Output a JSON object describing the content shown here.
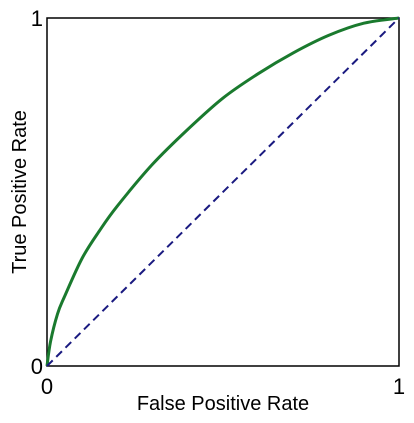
{
  "chart_data": {
    "type": "line",
    "title": "",
    "xlabel": "False Positive Rate",
    "ylabel": "True Positive Rate",
    "xlim": [
      0,
      1
    ],
    "ylim": [
      0,
      1
    ],
    "x_ticks": [
      "0",
      "1"
    ],
    "y_ticks": [
      "0",
      "1"
    ],
    "grid": false,
    "legend": "none",
    "series": [
      {
        "color": "#1a7a2e",
        "style": "solid",
        "x": [
          0,
          0.01,
          0.03,
          0.05,
          0.1,
          0.15,
          0.2,
          0.3,
          0.4,
          0.5,
          0.6,
          0.7,
          0.8,
          0.9,
          1.0
        ],
        "y": [
          0,
          0.07,
          0.15,
          0.2,
          0.31,
          0.39,
          0.46,
          0.58,
          0.68,
          0.77,
          0.84,
          0.9,
          0.95,
          0.985,
          1.0
        ]
      },
      {
        "color": "#1a1a80",
        "style": "dashed",
        "x": [
          0,
          1
        ],
        "y": [
          0,
          1
        ]
      }
    ]
  }
}
